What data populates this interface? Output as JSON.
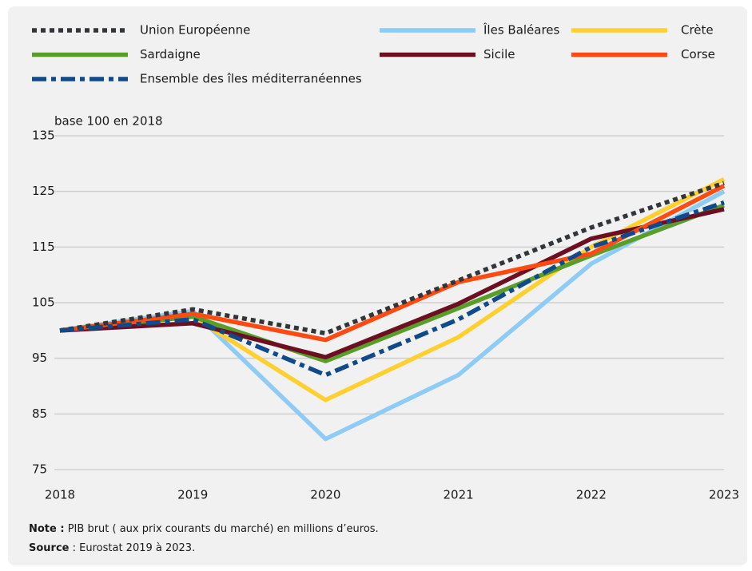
{
  "chart_data": {
    "type": "line",
    "y_label": "base 100 en 2018",
    "x": [
      2018,
      2019,
      2020,
      2021,
      2022,
      2023
    ],
    "xlim": [
      2018,
      2023
    ],
    "xticks": [
      2018,
      2019,
      2020,
      2021,
      2022,
      2023
    ],
    "ylim": [
      75,
      135
    ],
    "yticks": [
      75,
      85,
      95,
      105,
      115,
      125,
      135
    ],
    "grid": true,
    "series": [
      {
        "name": "Union Européenne",
        "color": "#31363b",
        "dash": "dotted",
        "values": [
          100,
          103.8,
          99.5,
          109,
          118.5,
          126.5
        ]
      },
      {
        "name": "Îles Baléares",
        "color": "#8ecbf5",
        "dash": "solid",
        "values": [
          100,
          103.5,
          80.5,
          92,
          112,
          125
        ]
      },
      {
        "name": "Crète",
        "color": "#ffd02f",
        "dash": "solid",
        "values": [
          100,
          102.5,
          87.5,
          98.8,
          115,
          127.2
        ]
      },
      {
        "name": "Sardaigne",
        "color": "#5a9e2a",
        "dash": "solid",
        "values": [
          100,
          102.5,
          94.5,
          104,
          113.5,
          122.5
        ]
      },
      {
        "name": "Sicile",
        "color": "#6d0f23",
        "dash": "solid",
        "values": [
          100,
          101.3,
          95.2,
          104.8,
          116.5,
          121.8
        ]
      },
      {
        "name": "Corse",
        "color": "#ff4a12",
        "dash": "solid",
        "values": [
          100,
          103,
          98.3,
          108.7,
          113.8,
          126
        ]
      },
      {
        "name": "Ensemble des îles méditerranéennes",
        "color": "#104a8a",
        "dash": "dashdot",
        "values": [
          100,
          102,
          92,
          102,
          115,
          123
        ]
      }
    ],
    "note": {
      "label": "Note :",
      "text": "PIB brut ( aux prix courants du marché) en millions d’euros."
    },
    "source": {
      "label": "Source",
      "text": ": Eurostat 2019 à 2023."
    }
  }
}
